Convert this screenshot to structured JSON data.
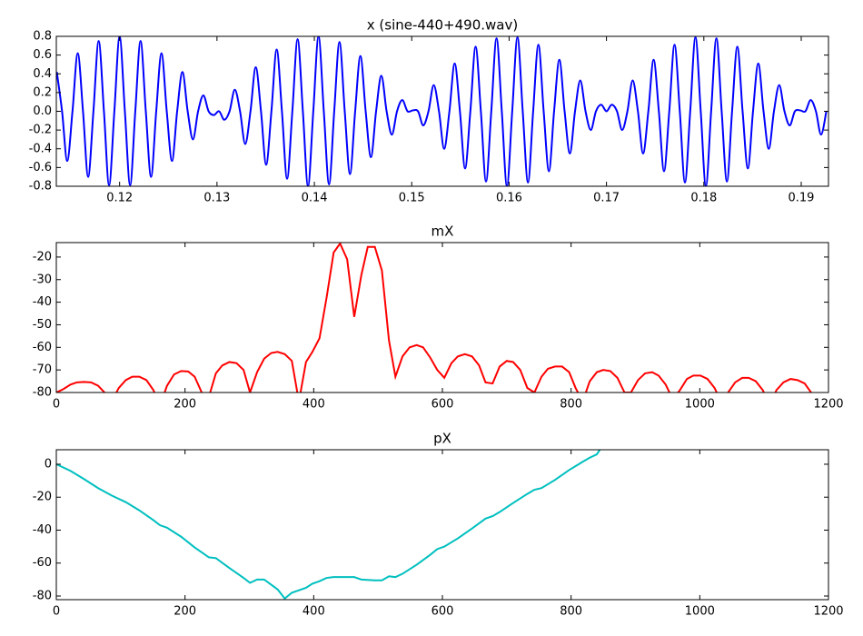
{
  "chart_data": [
    {
      "type": "line",
      "title": "x (sine-440+490.wav)",
      "color": "#0000ff",
      "xlim": [
        0.1135,
        0.1928
      ],
      "xticks": [
        0.12,
        0.13,
        0.14,
        0.15,
        0.16,
        0.17,
        0.18,
        0.19
      ],
      "ylim": [
        -0.8,
        0.8
      ],
      "yticks": [
        -0.8,
        -0.6,
        -0.4,
        -0.2,
        {
          "value": 0,
          "label": "0.0"
        },
        0.2,
        0.4,
        0.6,
        0.8
      ],
      "x": [
        0.11355,
        0.11409,
        0.11462,
        0.11516,
        0.1157,
        0.11624,
        0.11677,
        0.11731,
        0.11785,
        0.11839,
        0.11892,
        0.11946,
        0.12,
        0.12054,
        0.12108,
        0.12161,
        0.12215,
        0.12269,
        0.12323,
        0.12376,
        0.1243,
        0.12484,
        0.12538,
        0.12591,
        0.12645,
        0.12699,
        0.12753,
        0.12806,
        0.1286,
        0.12914,
        0.12968,
        0.13022,
        0.13075,
        0.13129,
        0.13183,
        0.13237,
        0.1329,
        0.13344,
        0.13398,
        0.13452,
        0.13505,
        0.13559,
        0.13613,
        0.13667,
        0.1372,
        0.13774,
        0.13828,
        0.13882,
        0.13935,
        0.13989,
        0.14043,
        0.14097,
        0.14151,
        0.14204,
        0.14258,
        0.14312,
        0.14366,
        0.14419,
        0.14473,
        0.14527,
        0.14581,
        0.14634,
        0.14688,
        0.14742,
        0.14796,
        0.14849,
        0.14903,
        0.14957,
        0.15011,
        0.15065,
        0.15118,
        0.15172,
        0.15226,
        0.1528,
        0.15333,
        0.15387,
        0.15441,
        0.15495,
        0.15548,
        0.15602,
        0.15656,
        0.1571,
        0.15763,
        0.15817,
        0.15871,
        0.15925,
        0.15978,
        0.16032,
        0.16086,
        0.1614,
        0.16194,
        0.16247,
        0.16301,
        0.16355,
        0.16409,
        0.16462,
        0.16516,
        0.1657,
        0.16624,
        0.16677,
        0.16731,
        0.16785,
        0.16839,
        0.16892,
        0.16946,
        0.17,
        0.17054,
        0.17108,
        0.17161,
        0.17215,
        0.17269,
        0.17323,
        0.17376,
        0.1743,
        0.17484,
        0.17538,
        0.17591,
        0.17645,
        0.17699,
        0.17753,
        0.17806,
        0.1786,
        0.17914,
        0.17968,
        0.18021,
        0.18075,
        0.18129,
        0.18183,
        0.18237,
        0.1829,
        0.18344,
        0.18398,
        0.18452,
        0.18505,
        0.18559,
        0.18613,
        0.18667,
        0.1872,
        0.18774,
        0.18828,
        0.18882,
        0.18935,
        0.18989,
        0.19043,
        0.19097,
        0.19151,
        0.19204,
        0.19258
      ],
      "values": [
        0.42,
        0,
        -0.53,
        0,
        0.62,
        0,
        -0.7,
        0,
        0.75,
        0,
        -0.79,
        0,
        0.8,
        0,
        -0.79,
        0,
        0.75,
        0,
        -0.7,
        0,
        0.62,
        0,
        -0.53,
        0,
        0.42,
        0,
        -0.3,
        0,
        0.17,
        0,
        -0.04,
        0,
        -0.09,
        0,
        0.23,
        0,
        -0.35,
        0,
        0.47,
        0,
        -0.57,
        0,
        0.66,
        0,
        -0.72,
        0,
        0.77,
        0,
        -0.8,
        0,
        0.8,
        0,
        -0.78,
        0,
        0.74,
        0,
        -0.67,
        0,
        0.59,
        0,
        -0.49,
        0,
        0.38,
        0,
        -0.25,
        0,
        0.12,
        0,
        0.01,
        0,
        -0.15,
        0,
        0.28,
        0,
        -0.4,
        0,
        0.51,
        0,
        -0.61,
        0,
        0.69,
        0,
        -0.75,
        0,
        0.78,
        0,
        -0.8,
        0,
        0.79,
        0,
        -0.76,
        0,
        0.71,
        0,
        -0.64,
        0,
        0.55,
        0,
        -0.45,
        0,
        0.33,
        0,
        -0.2,
        0,
        0.07,
        0,
        0.07,
        0,
        -0.2,
        0,
        0.33,
        0,
        -0.45,
        0,
        0.55,
        0,
        -0.64,
        0,
        0.71,
        0,
        -0.76,
        0,
        0.79,
        0,
        -0.8,
        0,
        0.78,
        0,
        -0.75,
        0,
        0.69,
        0,
        -0.61,
        0,
        0.51,
        0,
        -0.4,
        0,
        0.28,
        0,
        -0.15,
        0,
        0.01,
        0,
        0.12,
        0,
        -0.25,
        0
      ]
    },
    {
      "type": "line",
      "title": "mX",
      "color": "#ff0000",
      "xlim": [
        0,
        1200
      ],
      "xticks": [
        0,
        200,
        400,
        600,
        800,
        1000,
        1200
      ],
      "ylim": [
        -80,
        -13.6
      ],
      "yticks": [
        -80,
        -70,
        -60,
        -50,
        -40,
        -30,
        -20
      ],
      "x": [
        0,
        11,
        22,
        32,
        43,
        54,
        65,
        75,
        86,
        97,
        108,
        118,
        129,
        140,
        151,
        161,
        172,
        183,
        194,
        205,
        215,
        226,
        237,
        248,
        258,
        269,
        280,
        291,
        301,
        312,
        323,
        334,
        344,
        355,
        366,
        377,
        388,
        398,
        409,
        420,
        431,
        441,
        452,
        463,
        474,
        484,
        495,
        506,
        517,
        527,
        538,
        549,
        560,
        570,
        581,
        592,
        603,
        614,
        624,
        635,
        646,
        657,
        667,
        678,
        689,
        700,
        710,
        721,
        732,
        743,
        754,
        764,
        775,
        786,
        797,
        807,
        818,
        829,
        840,
        850,
        861,
        872,
        883,
        893,
        904,
        915,
        926,
        936,
        947,
        958,
        969,
        980,
        990,
        1001,
        1012,
        1023,
        1033,
        1044,
        1055,
        1066,
        1076,
        1087,
        1098,
        1109,
        1119,
        1130,
        1141,
        1152,
        1163,
        1173,
        1184,
        1195
      ],
      "values": [
        -80,
        -78.5,
        -76.5,
        -75.5,
        -75.3,
        -75.5,
        -77,
        -80,
        -84,
        -78,
        -74.5,
        -73,
        -73,
        -74.5,
        -79,
        -86,
        -77,
        -72,
        -70.5,
        -70.7,
        -73,
        -80,
        -82,
        -71.5,
        -68,
        -66.5,
        -67,
        -70,
        -80,
        -71,
        -65,
        -62.5,
        -62,
        -63,
        -66,
        -84,
        -66.5,
        -62,
        -56,
        -38,
        -18,
        -14,
        -21,
        -46.5,
        -28,
        -15.5,
        -15.5,
        -26,
        -57,
        -73,
        -64,
        -60,
        -59,
        -60,
        -64.5,
        -70,
        -73.5,
        -67,
        -64,
        -63,
        -64,
        -68,
        -75.5,
        -76,
        -68.5,
        -66,
        -66.5,
        -70,
        -78,
        -80,
        -73,
        -69.5,
        -68.5,
        -68.5,
        -71,
        -78,
        -84,
        -75,
        -71,
        -70,
        -70.5,
        -73.5,
        -80,
        -80,
        -74.5,
        -71.5,
        -71,
        -72.5,
        -76.5,
        -83,
        -79,
        -74,
        -72.5,
        -72.5,
        -74,
        -78,
        -84,
        -80,
        -75.5,
        -73.5,
        -73.5,
        -75,
        -79,
        -86,
        -79,
        -75.5,
        -74,
        -74.5,
        -76,
        -80,
        -84,
        -85
      ]
    },
    {
      "type": "line",
      "title": "pX",
      "color": "#00bfbf",
      "xlim": [
        0,
        1200
      ],
      "xticks": [
        0,
        200,
        400,
        600,
        800,
        1000,
        1200
      ],
      "ylim": [
        -82.2,
        8.8
      ],
      "yticks": [
        -80,
        -60,
        -40,
        -20,
        0
      ],
      "x": [
        0,
        22,
        43,
        65,
        86,
        108,
        129,
        151,
        161,
        172,
        194,
        215,
        226,
        237,
        248,
        269,
        291,
        301,
        312,
        323,
        344,
        355,
        366,
        377,
        388,
        398,
        409,
        420,
        431,
        452,
        463,
        474,
        495,
        506,
        517,
        527,
        538,
        560,
        581,
        592,
        603,
        624,
        646,
        667,
        678,
        689,
        710,
        732,
        743,
        754,
        775,
        797,
        818,
        829,
        840,
        850
      ],
      "values": [
        0,
        -4,
        -9,
        -14.5,
        -19,
        -23,
        -28,
        -34,
        -37,
        -38.5,
        -44,
        -50.5,
        -53.5,
        -56.5,
        -57,
        -63,
        -69,
        -72,
        -70,
        -70,
        -76,
        -81.5,
        -78,
        -76.5,
        -75,
        -72.5,
        -71,
        -69,
        -68.5,
        -68.5,
        -68.5,
        -70,
        -70.5,
        -70.5,
        -68,
        -68.5,
        -66.5,
        -61,
        -55,
        -51.5,
        -50,
        -45,
        -39,
        -33,
        -31.5,
        -29,
        -23.5,
        -18,
        -15.5,
        -14.5,
        -9.5,
        -3.5,
        1.5,
        4,
        6,
        12
      ]
    }
  ]
}
